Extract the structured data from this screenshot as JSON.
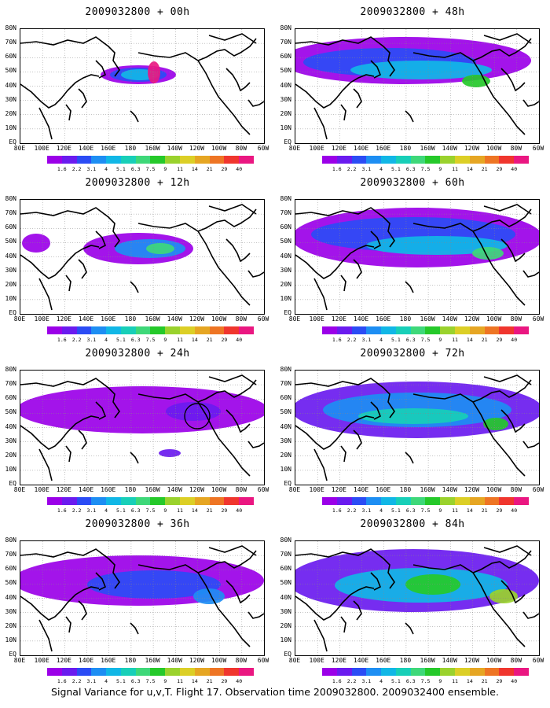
{
  "panels": [
    {
      "title": "2009032800 + 00h"
    },
    {
      "title": "2009032800 + 48h"
    },
    {
      "title": "2009032800 + 12h"
    },
    {
      "title": "2009032800 + 60h"
    },
    {
      "title": "2009032800 + 24h"
    },
    {
      "title": "2009032800 + 72h"
    },
    {
      "title": "2009032800 + 36h"
    },
    {
      "title": "2009032800 + 84h"
    }
  ],
  "lat_labels": [
    "80N",
    "70N",
    "60N",
    "50N",
    "40N",
    "30N",
    "20N",
    "10N",
    "EQ"
  ],
  "lon_labels": [
    "80E",
    "100E",
    "120E",
    "140E",
    "160E",
    "180",
    "160W",
    "140W",
    "120W",
    "100W",
    "80W",
    "60W"
  ],
  "colorbar": {
    "levels": [
      "1.6",
      "2.2",
      "3.1",
      "4",
      "5.1",
      "6.3",
      "7.5",
      "9",
      "11",
      "14",
      "21",
      "29",
      "40"
    ],
    "colors": [
      "#9b00e8",
      "#6a1bef",
      "#2b4cf5",
      "#1d8ef3",
      "#11b7e6",
      "#18cfb8",
      "#3ed879",
      "#25c92a",
      "#9ad22d",
      "#dccf26",
      "#e6a623",
      "#ee7524",
      "#f0362e",
      "#ea1781"
    ]
  },
  "caption": "Signal Variance for u,v,T. Flight 17. Observation time 2009032800. 2009032400 ensemble."
}
